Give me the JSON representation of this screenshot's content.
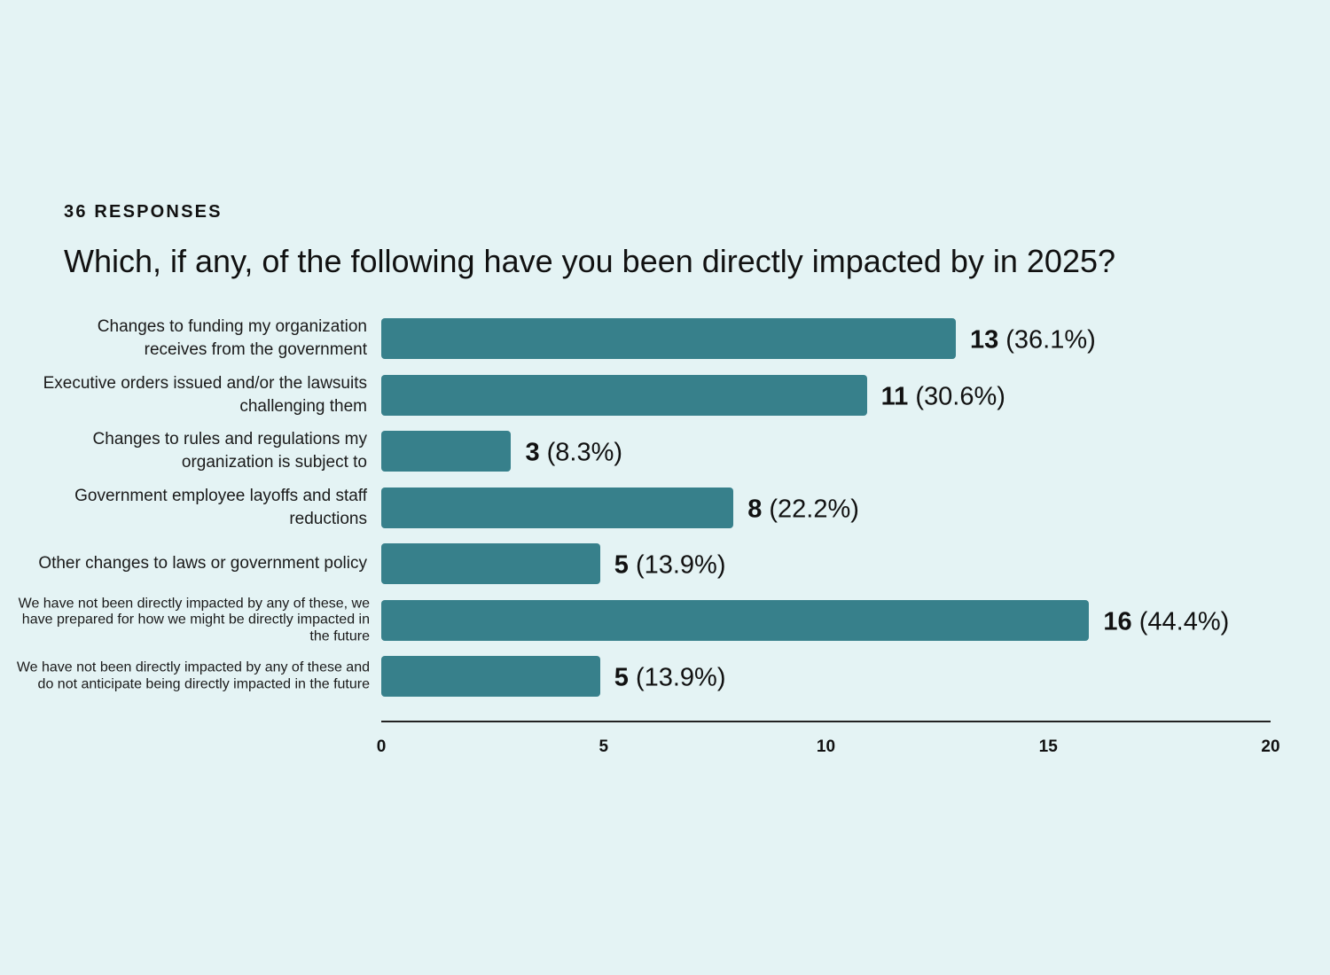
{
  "header": {
    "eyebrow": "36 RESPONSES",
    "question": "Which, if any, of the following have you been directly impacted by in 2025?"
  },
  "colors": {
    "background": "#e4f3f4",
    "bar": "#37808b"
  },
  "chart_data": {
    "type": "bar",
    "orientation": "horizontal",
    "title": "Which, if any, of the following have you been directly impacted by in 2025?",
    "subtitle": "36 RESPONSES",
    "xlim": [
      0,
      20
    ],
    "x_ticks": [
      "0",
      "5",
      "10",
      "15",
      "20"
    ],
    "grid": false,
    "categories": [
      "Changes to funding my organization receives from the government",
      "Executive orders issued and/or the lawsuits challenging them",
      "Changes to rules and regulations my organization is subject to",
      "Government employee layoffs and staff reductions",
      "Other changes to laws or government policy",
      "We have not been directly impacted by any of these, we have prepared for how we might be directly impacted in the future",
      "We have not been directly impacted by any of these and do not anticipate being directly impacted in the future"
    ],
    "values": [
      13,
      11,
      3,
      8,
      5,
      16,
      5
    ],
    "value_labels": [
      "13",
      "11",
      "3",
      "8",
      "5",
      "16",
      "5"
    ],
    "percent_labels": [
      "(36.1%)",
      "(30.6%)",
      "(8.3%)",
      "(22.2%)",
      "(13.9%)",
      "(44.4%)",
      "(13.9%)"
    ]
  }
}
